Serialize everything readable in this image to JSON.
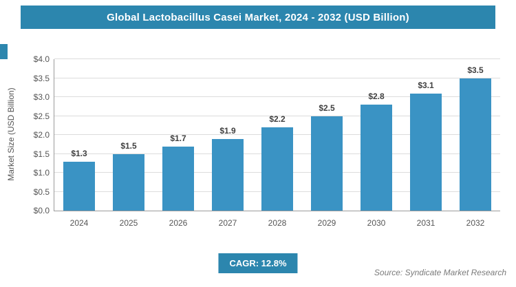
{
  "header": {
    "title": "Global Lactobacillus Casei Market, 2024 - 2032 (USD Billion)"
  },
  "chart_data": {
    "type": "bar",
    "title": "Global Lactobacillus Casei Market, 2024 - 2032 (USD Billion)",
    "categories": [
      "2024",
      "2025",
      "2026",
      "2027",
      "2028",
      "2029",
      "2030",
      "2031",
      "2032"
    ],
    "values": [
      1.3,
      1.5,
      1.7,
      1.9,
      2.2,
      2.5,
      2.8,
      3.1,
      3.5
    ],
    "value_labels": [
      "$1.3",
      "$1.5",
      "$1.7",
      "$1.9",
      "$2.2",
      "$2.5",
      "$2.8",
      "$3.1",
      "$3.5"
    ],
    "xlabel": "",
    "ylabel": "Market Size (USD Billion)",
    "ylim": [
      0,
      4.0
    ],
    "ytick_step": 0.5,
    "ytick_prefix": "$",
    "grid": true,
    "legend": "none",
    "bar_color": "#3a93c4"
  },
  "footer": {
    "cagr_label": "CAGR: 12.8%",
    "source": "Source: Syndicate Market Research"
  },
  "colors": {
    "accent": "#2c86ae",
    "bar": "#3a93c4",
    "grid": "#dcdcdc",
    "axis": "#9a9a9a",
    "text": "#404040"
  }
}
